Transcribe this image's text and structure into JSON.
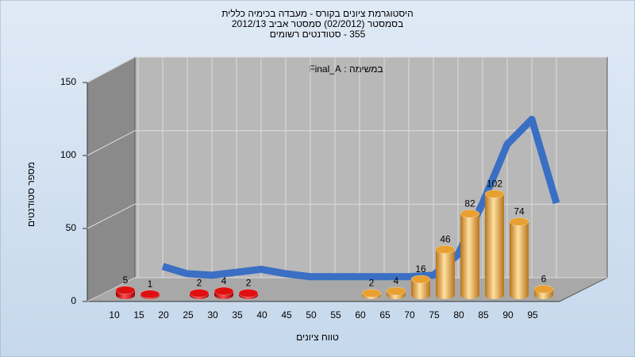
{
  "chart_data": {
    "type": "bar3d",
    "title": "היסטוגרמת ציונים בקורס - מעבדה בכימיה כללית",
    "subtitle": "בסמסטר  (02/2012)  סמסטר אביב 2012/13",
    "subtitle2": "355 - סטודנטים רשומים",
    "annotation": "במשימה : Final_A",
    "x_label": "טווח ציונים",
    "y_label": "מספר סטודנטים",
    "categories": [
      "10",
      "15",
      "20",
      "25",
      "30",
      "35",
      "40",
      "45",
      "50",
      "55",
      "60",
      "65",
      "70",
      "75",
      "80",
      "85",
      "90",
      "95"
    ],
    "values": [
      5,
      1,
      0,
      2,
      4,
      2,
      0,
      0,
      0,
      0,
      2,
      4,
      16,
      46,
      82,
      102,
      74,
      6
    ],
    "colors": [
      "#e01010",
      "#e01010",
      "#e01010",
      "#e01010",
      "#e01010",
      "#e01010",
      "#e01010",
      "#e01010",
      "#e01010",
      "#e01010",
      "#e8a030",
      "#e8a030",
      "#e8a030",
      "#e8a030",
      "#e8a030",
      "#e8a030",
      "#e8a030",
      "#e8a030"
    ],
    "curve": {
      "color": "#3a6fc4",
      "values": [
        null,
        12,
        7,
        6,
        8,
        10,
        7,
        5,
        5,
        5,
        5,
        5,
        6,
        20,
        55,
        95,
        112,
        55
      ]
    },
    "ylim": [
      0,
      150
    ],
    "yticks": [
      0,
      50,
      100,
      150
    ],
    "grid": true
  }
}
